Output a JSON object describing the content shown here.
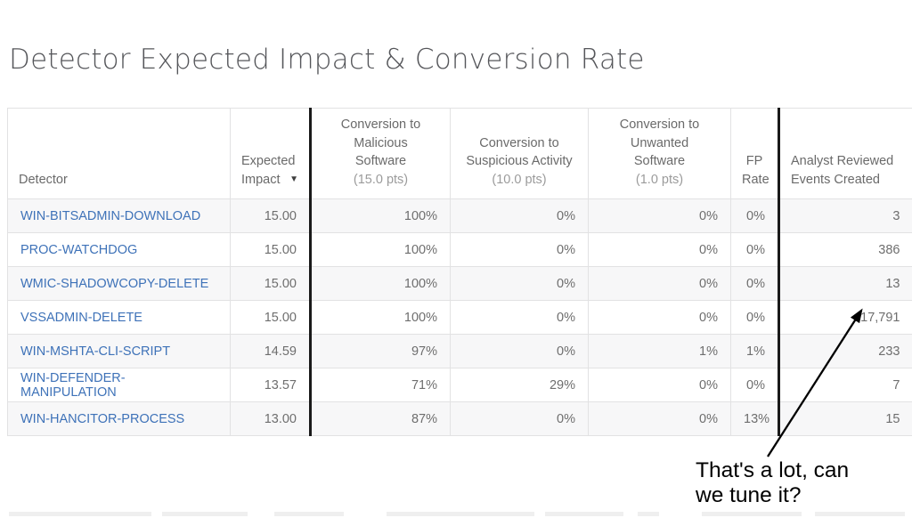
{
  "title": "Detector Expected Impact & Conversion Rate",
  "table": {
    "columns": [
      {
        "lines": [
          "Detector"
        ]
      },
      {
        "lines": [
          "Expected",
          "Impact"
        ]
      },
      {
        "lines": [
          "Conversion to Malicious",
          "Software"
        ],
        "sub": "(15.0 pts)"
      },
      {
        "lines": [
          "Conversion to",
          "Suspicious Activity"
        ],
        "sub": "(10.0 pts)"
      },
      {
        "lines": [
          "Conversion to Unwanted",
          "Software"
        ],
        "sub": "(1.0 pts)"
      },
      {
        "lines": [
          "FP",
          "Rate"
        ]
      },
      {
        "lines": [
          "Analyst Reviewed",
          "Events Created"
        ]
      }
    ],
    "sort": {
      "column": "Expected Impact",
      "direction": "descending",
      "icon": "▼"
    },
    "rows": [
      {
        "detector": "WIN-BITSADMIN-DOWNLOAD",
        "expected_impact": "15.00",
        "conv_malicious": "100%",
        "conv_suspicious": "0%",
        "conv_unwanted": "0%",
        "fp_rate": "0%",
        "events_created": "3"
      },
      {
        "detector": "PROC-WATCHDOG",
        "expected_impact": "15.00",
        "conv_malicious": "100%",
        "conv_suspicious": "0%",
        "conv_unwanted": "0%",
        "fp_rate": "0%",
        "events_created": "386"
      },
      {
        "detector": "WMIC-SHADOWCOPY-DELETE",
        "expected_impact": "15.00",
        "conv_malicious": "100%",
        "conv_suspicious": "0%",
        "conv_unwanted": "0%",
        "fp_rate": "0%",
        "events_created": "13"
      },
      {
        "detector": "VSSADMIN-DELETE",
        "expected_impact": "15.00",
        "conv_malicious": "100%",
        "conv_suspicious": "0%",
        "conv_unwanted": "0%",
        "fp_rate": "0%",
        "events_created": "17,791"
      },
      {
        "detector": "WIN-MSHTA-CLI-SCRIPT",
        "expected_impact": "14.59",
        "conv_malicious": "97%",
        "conv_suspicious": "0%",
        "conv_unwanted": "1%",
        "fp_rate": "1%",
        "events_created": "233"
      },
      {
        "detector": "WIN-DEFENDER-MANIPULATION",
        "expected_impact": "13.57",
        "conv_malicious": "71%",
        "conv_suspicious": "29%",
        "conv_unwanted": "0%",
        "fp_rate": "0%",
        "events_created": "7"
      },
      {
        "detector": "WIN-HANCITOR-PROCESS",
        "expected_impact": "13.00",
        "conv_malicious": "87%",
        "conv_suspicious": "0%",
        "conv_unwanted": "0%",
        "fp_rate": "13%",
        "events_created": "15"
      }
    ]
  },
  "annotation": {
    "lines": [
      "That's a lot, can",
      "we tune it?"
    ]
  },
  "colors": {
    "link": "#3e72b8",
    "title": "#55565a",
    "divider": "#1a1a1a",
    "stripe": "#f7f7f8",
    "border": "#e2e2e3",
    "annotation": "#000000"
  }
}
